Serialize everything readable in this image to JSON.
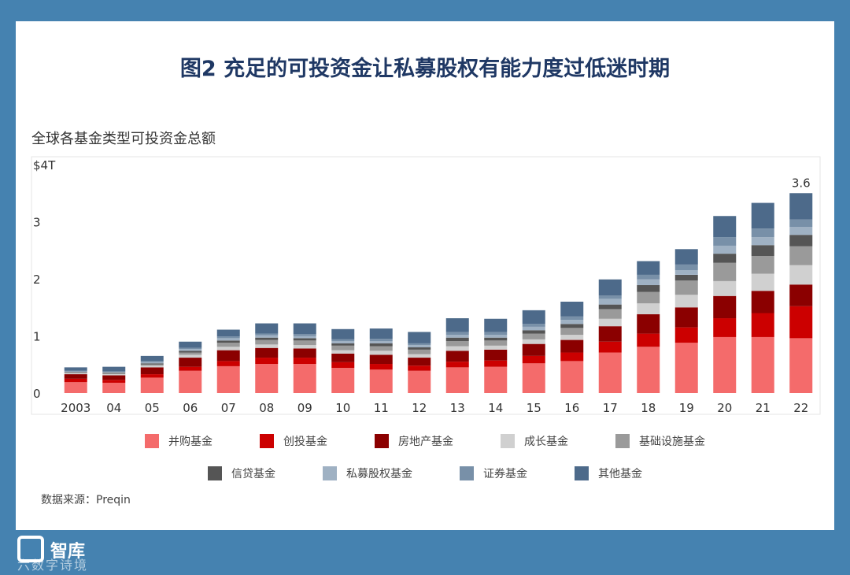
{
  "title": "图2 充足的可投资金让私募股权有能力度过低迷时期",
  "source": "数据来源：Preqin",
  "logo": {
    "text": "智库",
    "subtext": "六数字诗境"
  },
  "chart_data": {
    "type": "bar",
    "stacked": true,
    "title": "全球各基金类型可投资金总额",
    "ylabel": "",
    "xlabel": "",
    "ylim": [
      0,
      4
    ],
    "yticks": [
      "0",
      "1",
      "2",
      "3",
      "$4T"
    ],
    "categories": [
      "2003",
      "04",
      "05",
      "06",
      "07",
      "08",
      "09",
      "10",
      "11",
      "12",
      "13",
      "14",
      "15",
      "16",
      "17",
      "18",
      "19",
      "20",
      "21",
      "22"
    ],
    "series": [
      {
        "name": "并购基金",
        "color": "#f46b6b",
        "values": [
          0.19,
          0.18,
          0.27,
          0.39,
          0.47,
          0.51,
          0.51,
          0.44,
          0.41,
          0.39,
          0.45,
          0.46,
          0.52,
          0.56,
          0.71,
          0.81,
          0.88,
          0.98,
          0.98,
          0.96
        ]
      },
      {
        "name": "创投基金",
        "color": "#cc0000",
        "values": [
          0.06,
          0.05,
          0.06,
          0.07,
          0.09,
          0.11,
          0.11,
          0.1,
          0.1,
          0.09,
          0.1,
          0.11,
          0.13,
          0.15,
          0.19,
          0.23,
          0.27,
          0.33,
          0.42,
          0.56
        ]
      },
      {
        "name": "房地产基金",
        "color": "#8b0000",
        "values": [
          0.08,
          0.08,
          0.12,
          0.16,
          0.19,
          0.17,
          0.16,
          0.15,
          0.16,
          0.14,
          0.19,
          0.19,
          0.21,
          0.22,
          0.27,
          0.34,
          0.35,
          0.39,
          0.39,
          0.38
        ]
      },
      {
        "name": "成长基金",
        "color": "#d0d0d0",
        "values": [
          0.02,
          0.02,
          0.03,
          0.05,
          0.06,
          0.06,
          0.06,
          0.06,
          0.07,
          0.06,
          0.08,
          0.07,
          0.08,
          0.09,
          0.13,
          0.19,
          0.22,
          0.26,
          0.3,
          0.34
        ]
      },
      {
        "name": "基础设施基金",
        "color": "#9a9a9a",
        "values": [
          0.01,
          0.02,
          0.02,
          0.04,
          0.07,
          0.08,
          0.08,
          0.08,
          0.08,
          0.08,
          0.09,
          0.09,
          0.1,
          0.12,
          0.17,
          0.2,
          0.25,
          0.32,
          0.31,
          0.33
        ]
      },
      {
        "name": "信贷基金",
        "color": "#555555",
        "values": [
          0.01,
          0.01,
          0.02,
          0.03,
          0.04,
          0.04,
          0.04,
          0.04,
          0.05,
          0.04,
          0.06,
          0.05,
          0.06,
          0.07,
          0.08,
          0.12,
          0.1,
          0.16,
          0.19,
          0.2
        ]
      },
      {
        "name": "私募股权基金",
        "color": "#9fb1c3",
        "values": [
          0.01,
          0.01,
          0.02,
          0.03,
          0.04,
          0.04,
          0.04,
          0.04,
          0.04,
          0.04,
          0.05,
          0.05,
          0.06,
          0.07,
          0.1,
          0.1,
          0.08,
          0.14,
          0.14,
          0.14
        ]
      },
      {
        "name": "证券基金",
        "color": "#7890a8",
        "values": [
          0.01,
          0.01,
          0.02,
          0.02,
          0.03,
          0.03,
          0.03,
          0.03,
          0.04,
          0.03,
          0.05,
          0.05,
          0.05,
          0.06,
          0.06,
          0.08,
          0.1,
          0.15,
          0.15,
          0.13
        ]
      },
      {
        "name": "其他基金",
        "color": "#4d6a8a",
        "values": [
          0.06,
          0.08,
          0.09,
          0.11,
          0.12,
          0.18,
          0.19,
          0.18,
          0.18,
          0.2,
          0.24,
          0.23,
          0.24,
          0.26,
          0.28,
          0.24,
          0.27,
          0.37,
          0.45,
          0.46
        ]
      }
    ],
    "annotations": [
      {
        "category": "22",
        "label": "3.6"
      }
    ],
    "grid": false,
    "legend_position": "bottom"
  }
}
